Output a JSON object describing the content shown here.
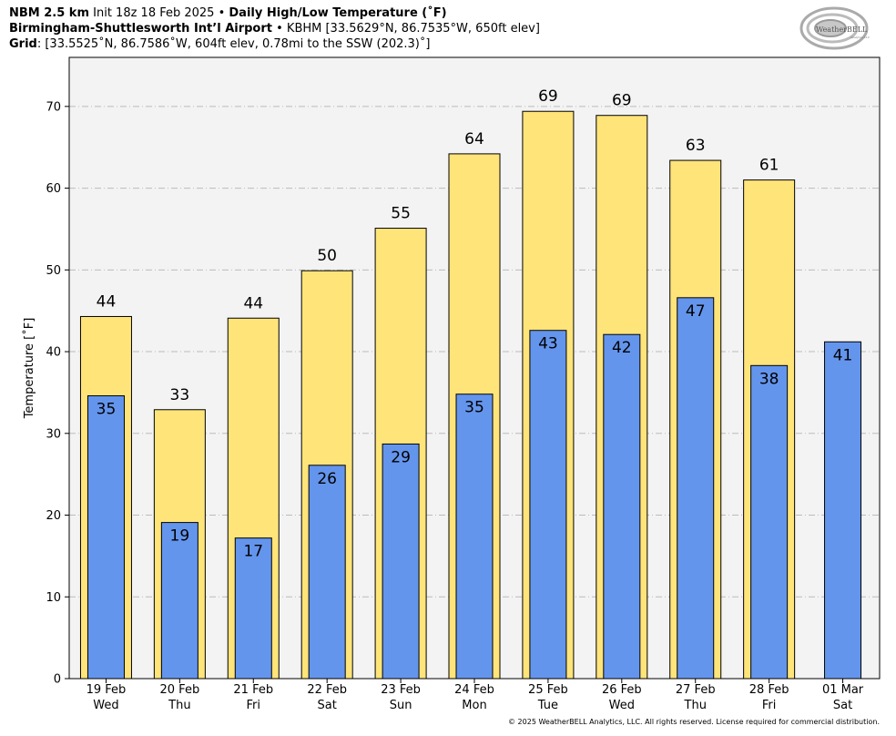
{
  "header": {
    "line1_bold1": "NBM 2.5 km",
    "line1_text": " Init 18z 18 Feb 2025 • ",
    "line1_bold2": "Daily High/Low Temperature (˚F)",
    "line2_bold": "Birmingham-Shuttlesworth Int’l Airport",
    "line2_text": " • KBHM [33.5629°N, 86.7535°W, 650ft elev]",
    "line3_bold": "Grid",
    "line3_text": ": [33.5525˚N, 86.7586˚W, 604ft elev, 0.78mi to the SSW (202.3)˚]"
  },
  "logo": {
    "text_main": "WeatherBELL",
    "text_sub": "Analytics LLC",
    "icon": "swirl-logo-icon"
  },
  "footer": "© 2025 WeatherBELL Analytics, LLC. All rights reserved. License required for commercial distribution.",
  "colors": {
    "high": "#FFE47A",
    "low": "#6495ED",
    "plot_bg": "#F3F3F3",
    "grid": "#BBBBBB"
  },
  "chart_data": {
    "type": "bar",
    "title": "Daily High/Low Temperature (˚F)",
    "xlabel": "",
    "ylabel": "Temperature [˚F]",
    "ylim": [
      0,
      76
    ],
    "yticks": [
      0,
      10,
      20,
      30,
      40,
      50,
      60,
      70
    ],
    "grid": true,
    "categories": [
      {
        "date": "19 Feb",
        "day": "Wed"
      },
      {
        "date": "20 Feb",
        "day": "Thu"
      },
      {
        "date": "21 Feb",
        "day": "Fri"
      },
      {
        "date": "22 Feb",
        "day": "Sat"
      },
      {
        "date": "23 Feb",
        "day": "Sun"
      },
      {
        "date": "24 Feb",
        "day": "Mon"
      },
      {
        "date": "25 Feb",
        "day": "Tue"
      },
      {
        "date": "26 Feb",
        "day": "Wed"
      },
      {
        "date": "27 Feb",
        "day": "Thu"
      },
      {
        "date": "28 Feb",
        "day": "Fri"
      },
      {
        "date": "01 Mar",
        "day": "Sat"
      }
    ],
    "series": [
      {
        "name": "High",
        "values": [
          44.3,
          32.9,
          44.1,
          49.9,
          55.1,
          64.2,
          69.4,
          68.9,
          63.4,
          61.0,
          null
        ],
        "labels": [
          "44",
          "33",
          "44",
          "50",
          "55",
          "64",
          "69",
          "69",
          "63",
          "61",
          null
        ]
      },
      {
        "name": "Low",
        "values": [
          34.6,
          19.1,
          17.2,
          26.1,
          28.7,
          34.8,
          42.6,
          42.1,
          46.6,
          38.3,
          41.2
        ],
        "labels": [
          "35",
          "19",
          "17",
          "26",
          "29",
          "35",
          "43",
          "42",
          "47",
          "38",
          "41"
        ]
      }
    ]
  }
}
